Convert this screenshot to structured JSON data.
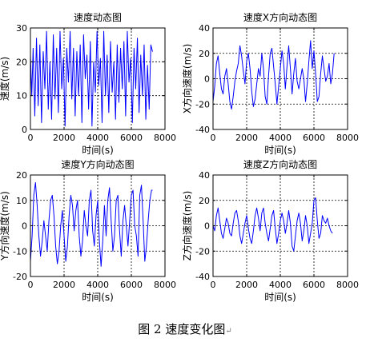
{
  "figure": {
    "caption": "图 2  速度变化图",
    "caption_mark": "↵"
  },
  "chart_data": [
    {
      "type": "line",
      "title": "速度动态图",
      "xlabel": "时间(s)",
      "ylabel": "速度(m/s)",
      "xlim": [
        0,
        8000
      ],
      "ylim": [
        0,
        30
      ],
      "xticks": [
        0,
        2000,
        4000,
        6000,
        8000
      ],
      "yticks": [
        0,
        10,
        20,
        30
      ],
      "grid": true,
      "color": "#0000ff",
      "series": [
        {
          "x": [
            0,
            80,
            160,
            260,
            360,
            460,
            560,
            660,
            760,
            860,
            960,
            1060,
            1160,
            1260,
            1360,
            1460,
            1560,
            1660,
            1760,
            1860,
            1960,
            2060,
            2160,
            2260,
            2360,
            2460,
            2560,
            2660,
            2760,
            2860,
            2960,
            3060,
            3160,
            3260,
            3360,
            3460,
            3560,
            3660,
            3760,
            3860,
            3960,
            4060,
            4160,
            4260,
            4360,
            4460,
            4560,
            4660,
            4760,
            4860,
            4960,
            5060,
            5160,
            5260,
            5360,
            5460,
            5560,
            5660,
            5760,
            5860,
            5960,
            6060,
            6160,
            6260,
            6360,
            6460,
            6560,
            6660,
            6760,
            6860,
            6960,
            7060,
            7160,
            7260
          ],
          "y": [
            22,
            10,
            24,
            4,
            27,
            7,
            25,
            2,
            23,
            12,
            29,
            6,
            20,
            3,
            28,
            9,
            24,
            5,
            29,
            12,
            21,
            1,
            24,
            14,
            29,
            9,
            24,
            4,
            23,
            10,
            25,
            2,
            28,
            15,
            22,
            6,
            26,
            1,
            20,
            11,
            29,
            13,
            21,
            2,
            29,
            10,
            22,
            5,
            26,
            11,
            20,
            3,
            25,
            8,
            24,
            12,
            26,
            4,
            29,
            14,
            21,
            2,
            24,
            12,
            27,
            5,
            22,
            10,
            25,
            3,
            19,
            6,
            25,
            23
          ]
        }
      ]
    },
    {
      "type": "line",
      "title": "速度X方向动态图",
      "xlabel": "时间(s)",
      "ylabel": "X方向速度(m/s)",
      "xlim": [
        0,
        8000
      ],
      "ylim": [
        -40,
        40
      ],
      "xticks": [
        0,
        2000,
        4000,
        6000,
        8000
      ],
      "yticks": [
        -40,
        -20,
        0,
        20,
        40
      ],
      "grid": true,
      "color": "#0000ff",
      "series": [
        {
          "x": [
            0,
            100,
            200,
            300,
            400,
            500,
            600,
            700,
            800,
            900,
            1000,
            1100,
            1200,
            1300,
            1400,
            1500,
            1600,
            1700,
            1800,
            1900,
            2000,
            2100,
            2200,
            2300,
            2400,
            2500,
            2600,
            2700,
            2800,
            2900,
            3000,
            3100,
            3200,
            3300,
            3400,
            3500,
            3600,
            3700,
            3800,
            3900,
            4000,
            4100,
            4200,
            4300,
            4400,
            4500,
            4600,
            4700,
            4800,
            4900,
            5000,
            5100,
            5200,
            5300,
            5400,
            5500,
            5600,
            5700,
            5800,
            5900,
            6000,
            6100,
            6200,
            6300,
            6400,
            6500,
            6600,
            6700,
            6800,
            6900,
            7000,
            7100,
            7200
          ],
          "y": [
            -18,
            -6,
            12,
            18,
            4,
            -8,
            -12,
            2,
            8,
            -4,
            -18,
            -24,
            -14,
            -2,
            6,
            12,
            26,
            18,
            6,
            -4,
            14,
            20,
            8,
            -10,
            -22,
            -16,
            -4,
            8,
            2,
            20,
            8,
            -14,
            -20,
            2,
            20,
            24,
            10,
            -4,
            -20,
            -6,
            8,
            22,
            12,
            -8,
            10,
            26,
            8,
            -12,
            4,
            16,
            -2,
            -8,
            0,
            8,
            0,
            -18,
            -4,
            14,
            30,
            8,
            22,
            4,
            -18,
            -14,
            4,
            18,
            8,
            -2,
            2,
            12,
            -4,
            4,
            20
          ]
        }
      ]
    },
    {
      "type": "line",
      "title": "速度Y方向动态图",
      "xlabel": "时间(s)",
      "ylabel": "Y方向速度(m/s)",
      "xlim": [
        0,
        8000
      ],
      "ylim": [
        -20,
        20
      ],
      "xticks": [
        0,
        2000,
        4000,
        6000,
        8000
      ],
      "yticks": [
        -20,
        -10,
        0,
        10,
        20
      ],
      "grid": true,
      "color": "#0000ff",
      "series": [
        {
          "x": [
            0,
            100,
            200,
            300,
            400,
            500,
            600,
            700,
            800,
            900,
            1000,
            1100,
            1200,
            1300,
            1400,
            1500,
            1600,
            1700,
            1800,
            1900,
            2000,
            2100,
            2200,
            2300,
            2400,
            2500,
            2600,
            2700,
            2800,
            2900,
            3000,
            3100,
            3200,
            3300,
            3400,
            3500,
            3600,
            3700,
            3800,
            3900,
            4000,
            4100,
            4200,
            4300,
            4400,
            4500,
            4600,
            4700,
            4800,
            4900,
            5000,
            5100,
            5200,
            5300,
            5400,
            5500,
            5600,
            5700,
            5800,
            5900,
            6000,
            6100,
            6200,
            6300,
            6400,
            6500,
            6600,
            6700,
            6800,
            6900,
            7000,
            7100,
            7200,
            7260
          ],
          "y": [
            -14,
            -4,
            12,
            17,
            8,
            -4,
            -12,
            -6,
            2,
            -4,
            -10,
            2,
            10,
            12,
            4,
            -8,
            -15,
            -10,
            0,
            6,
            -4,
            -14,
            -8,
            4,
            12,
            8,
            -2,
            6,
            10,
            -4,
            -12,
            -6,
            6,
            0,
            -4,
            10,
            14,
            -2,
            -8,
            4,
            10,
            -6,
            -16,
            -6,
            8,
            -4,
            10,
            15,
            2,
            -10,
            -4,
            10,
            12,
            -2,
            -12,
            2,
            8,
            0,
            -8,
            2,
            12,
            14,
            0,
            -4,
            -12,
            12,
            16,
            2,
            -14,
            -8,
            2,
            10,
            14,
            14
          ]
        }
      ]
    },
    {
      "type": "line",
      "title": "速度Z方向动态图",
      "xlabel": "时间(s)",
      "ylabel": "Z方向速度(m/s)",
      "xlim": [
        0,
        8000
      ],
      "ylim": [
        -40,
        40
      ],
      "xticks": [
        0,
        2000,
        4000,
        6000,
        8000
      ],
      "yticks": [
        -40,
        -20,
        0,
        20,
        40
      ],
      "grid": true,
      "color": "#0000ff",
      "series": [
        {
          "x": [
            0,
            100,
            200,
            300,
            400,
            500,
            600,
            700,
            800,
            900,
            1000,
            1100,
            1200,
            1300,
            1400,
            1500,
            1600,
            1700,
            1800,
            1900,
            2000,
            2100,
            2200,
            2300,
            2400,
            2500,
            2600,
            2700,
            2800,
            2900,
            3000,
            3100,
            3200,
            3300,
            3400,
            3500,
            3600,
            3700,
            3800,
            3900,
            4000,
            4100,
            4200,
            4300,
            4400,
            4500,
            4600,
            4700,
            4800,
            4900,
            5000,
            5100,
            5200,
            5300,
            5400,
            5500,
            5600,
            5700,
            5800,
            5900,
            6000,
            6100,
            6200,
            6300,
            6400,
            6500,
            6600,
            6700,
            6800,
            6900,
            7000,
            7100
          ],
          "y": [
            0,
            -4,
            8,
            14,
            4,
            -6,
            -10,
            -2,
            6,
            2,
            -6,
            -8,
            2,
            10,
            12,
            4,
            -8,
            -14,
            -6,
            2,
            8,
            -2,
            -10,
            -14,
            -4,
            8,
            14,
            6,
            -4,
            10,
            14,
            2,
            -6,
            -12,
            -2,
            8,
            12,
            -2,
            -14,
            -6,
            4,
            10,
            4,
            -6,
            2,
            12,
            2,
            -16,
            -20,
            -8,
            4,
            10,
            2,
            -12,
            -4,
            8,
            0,
            -14,
            -6,
            2,
            20,
            22,
            4,
            -10,
            -6,
            8,
            4,
            2,
            6,
            0,
            -4,
            -6
          ]
        }
      ]
    }
  ]
}
